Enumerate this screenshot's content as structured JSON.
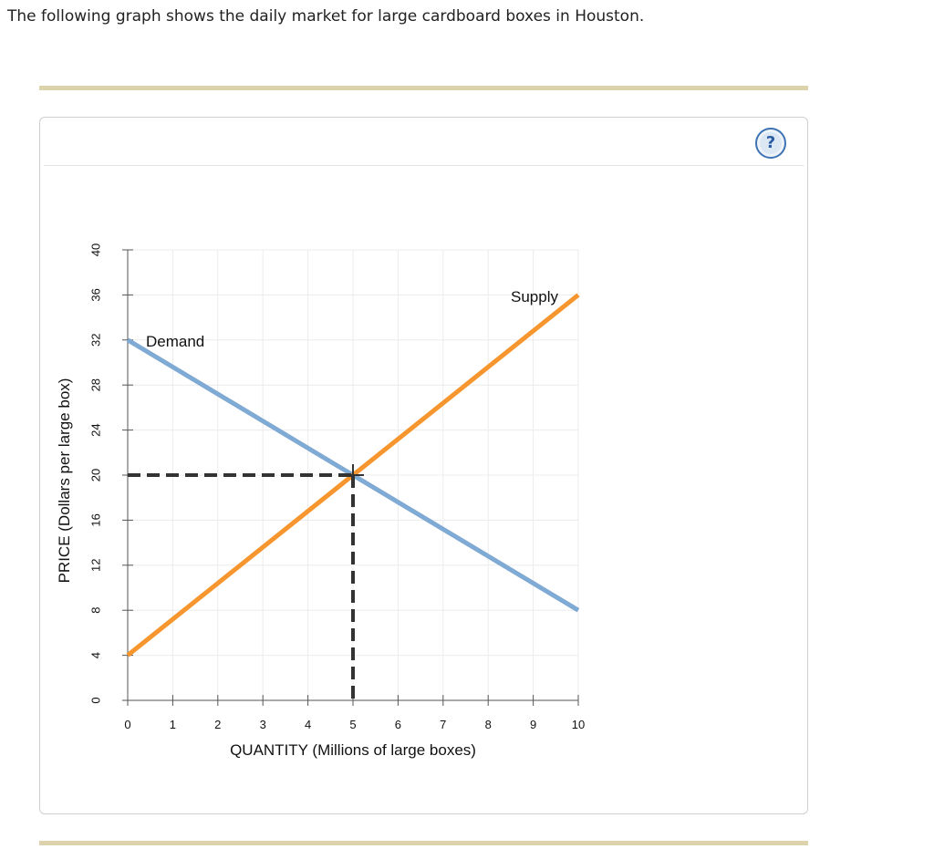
{
  "question": {
    "text": "The following graph shows the daily market for large cardboard boxes in Houston."
  },
  "help_button": {
    "label": "?",
    "icon": "help-icon",
    "color": "#3d73b4"
  },
  "chart_data": {
    "type": "line",
    "title": "",
    "xlabel": "QUANTITY (Millions of large boxes)",
    "ylabel": "PRICE (Dollars per large box)",
    "xlim": [
      0,
      10
    ],
    "ylim": [
      0,
      40
    ],
    "x_ticks": [
      "0",
      "1",
      "2",
      "3",
      "4",
      "5",
      "6",
      "7",
      "8",
      "9",
      "10"
    ],
    "y_ticks": [
      "0",
      "4",
      "8",
      "12",
      "16",
      "20",
      "24",
      "28",
      "32",
      "36",
      "40"
    ],
    "grid": true,
    "series": [
      {
        "name": "Demand",
        "color": "#7eaad3",
        "points": [
          [
            0,
            32
          ],
          [
            10,
            8
          ]
        ]
      },
      {
        "name": "Supply",
        "color": "#f7962e",
        "points": [
          [
            0,
            4
          ],
          [
            10,
            36
          ]
        ]
      }
    ],
    "equilibrium": {
      "x": 5,
      "y": 20,
      "color": "#333333"
    }
  }
}
